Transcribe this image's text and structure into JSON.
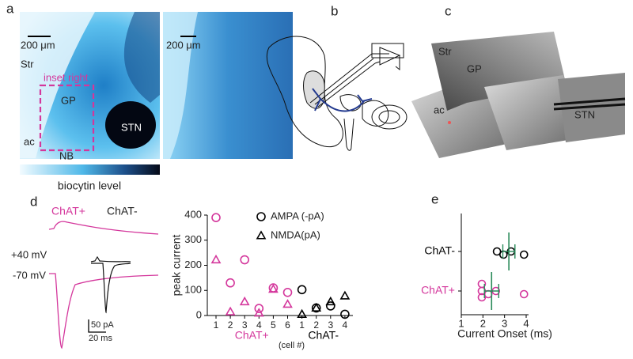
{
  "panel_labels": [
    "a",
    "b",
    "c",
    "d",
    "e"
  ],
  "panel_a": {
    "scale_bar": "200 μm",
    "labels": [
      "Str",
      "inset right",
      "GP",
      "ac",
      "STN",
      "NB"
    ],
    "inset_scale_bar": "200 μm",
    "colorbar_label": "biocytin level"
  },
  "panel_c": {
    "labels": [
      "Str",
      "GP",
      "ac",
      "STN"
    ]
  },
  "panel_d_traces": {
    "groups": [
      "ChAT+",
      "ChAT-"
    ],
    "voltages": [
      "+40 mV",
      "-70 mV"
    ],
    "scale_bars": [
      "50 pA",
      "20 ms"
    ]
  },
  "chart_data": [
    {
      "type": "grouped-scatter",
      "ylabel": "peak current",
      "xlabel": "(cell #)",
      "ylim": [
        0,
        400
      ],
      "yticks": [
        0,
        100,
        200,
        300,
        400
      ],
      "legend": [
        {
          "name": "AMPA (-pA)",
          "marker": "circle"
        },
        {
          "name": "NMDA(pA)",
          "marker": "triangle"
        }
      ],
      "groups": [
        {
          "name": "ChAT+",
          "color": "#d4379c",
          "categories": [
            "1",
            "2",
            "3",
            "4",
            "5",
            "6"
          ],
          "series": [
            [
              390,
              130,
              222,
              28,
              110,
              92
            ],
            [
              222,
              15,
              55,
              10,
              105,
              45
            ]
          ]
        },
        {
          "name": "ChAT-",
          "color": "#000000",
          "categories": [
            "1",
            "2",
            "3",
            "4"
          ],
          "series": [
            [
              103,
              30,
              38,
              5
            ],
            [
              5,
              30,
              55,
              78
            ]
          ]
        }
      ]
    },
    {
      "type": "dot",
      "xlabel": "Current Onset (ms)",
      "xlim": [
        1,
        4
      ],
      "xticks": [
        1,
        2,
        3,
        4
      ],
      "mean_color": "#2a8a5a",
      "groups": [
        {
          "name": "ChAT-",
          "color": "#000000",
          "values": [
            2.65,
            2.95,
            3.3,
            3.9
          ],
          "mean": 3.2,
          "sem": 0.28
        },
        {
          "name": "ChAT+",
          "color": "#d4379c",
          "values": [
            1.95,
            1.95,
            1.95,
            2.25,
            2.6,
            3.9
          ],
          "mean": 2.4,
          "sem": 0.33
        }
      ]
    }
  ]
}
